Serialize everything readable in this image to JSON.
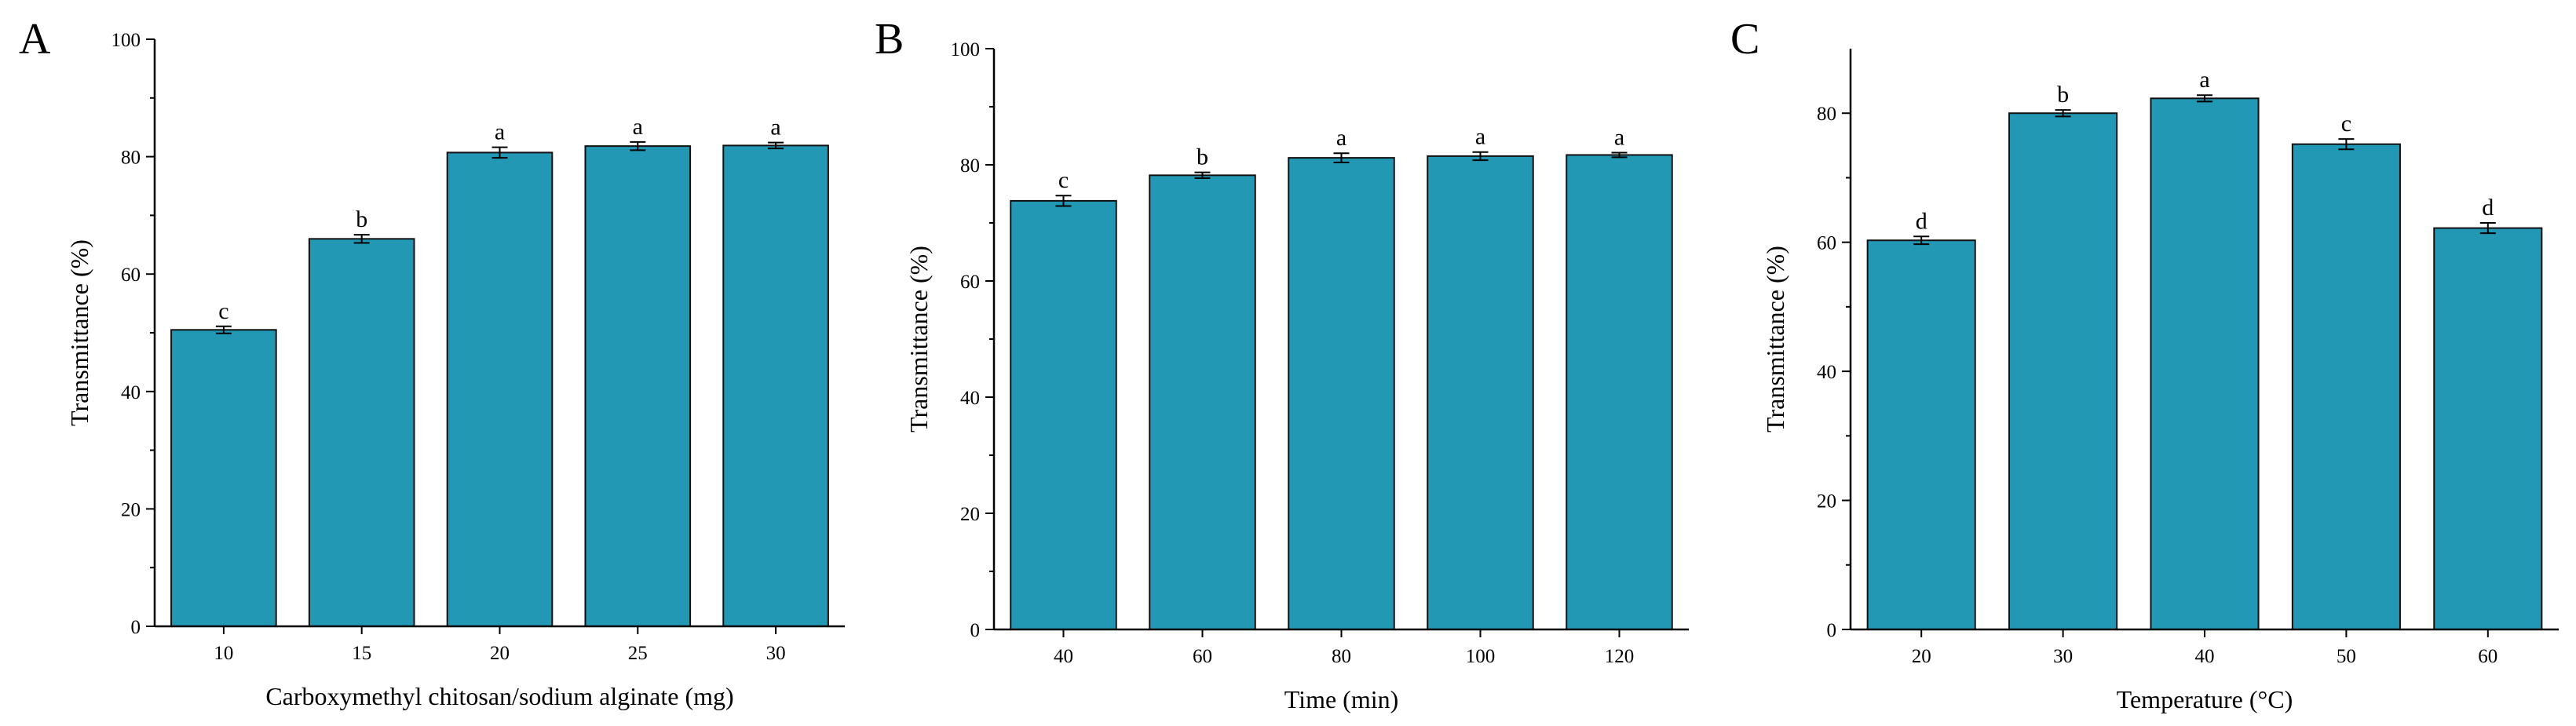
{
  "colors": {
    "bar": "#2398b5",
    "bar_stroke": "#111111",
    "axis": "#000000"
  },
  "chart_data": [
    {
      "type": "bar",
      "panel": "A",
      "title": "",
      "xlabel": "Carboxymethyl chitosan/sodium alginate (mg)",
      "ylabel": "Transmittance (%)",
      "categories": [
        "10",
        "15",
        "20",
        "25",
        "30"
      ],
      "values": [
        50.5,
        66.0,
        80.7,
        81.8,
        81.9
      ],
      "errors": [
        0.6,
        0.7,
        0.9,
        0.7,
        0.5
      ],
      "significance": [
        "c",
        "b",
        "a",
        "a",
        "a"
      ],
      "ylim": [
        0,
        100
      ],
      "yticks": [
        "0",
        "20",
        "40",
        "60",
        "80",
        "100"
      ],
      "grid": false
    },
    {
      "type": "bar",
      "panel": "B",
      "title": "",
      "xlabel": "Time (min)",
      "ylabel": "Transmittance (%)",
      "categories": [
        "40",
        "60",
        "80",
        "100",
        "120"
      ],
      "values": [
        73.8,
        78.2,
        81.2,
        81.5,
        81.7
      ],
      "errors": [
        0.9,
        0.5,
        0.8,
        0.7,
        0.4
      ],
      "significance": [
        "c",
        "b",
        "a",
        "a",
        "a"
      ],
      "ylim": [
        0,
        100
      ],
      "yticks": [
        "0",
        "20",
        "40",
        "60",
        "80",
        "100"
      ],
      "grid": false
    },
    {
      "type": "bar",
      "panel": "C",
      "title": "",
      "xlabel": "Temperature (°C)",
      "ylabel": "Transmittance (%)",
      "categories": [
        "20",
        "30",
        "40",
        "50",
        "60"
      ],
      "values": [
        60.3,
        80.0,
        82.3,
        75.2,
        62.2
      ],
      "errors": [
        0.6,
        0.5,
        0.5,
        0.8,
        0.8
      ],
      "significance": [
        "d",
        "b",
        "a",
        "c",
        "d"
      ],
      "ylim": [
        0,
        90
      ],
      "yticks": [
        "0",
        "20",
        "40",
        "60",
        "80"
      ],
      "grid": false
    }
  ]
}
